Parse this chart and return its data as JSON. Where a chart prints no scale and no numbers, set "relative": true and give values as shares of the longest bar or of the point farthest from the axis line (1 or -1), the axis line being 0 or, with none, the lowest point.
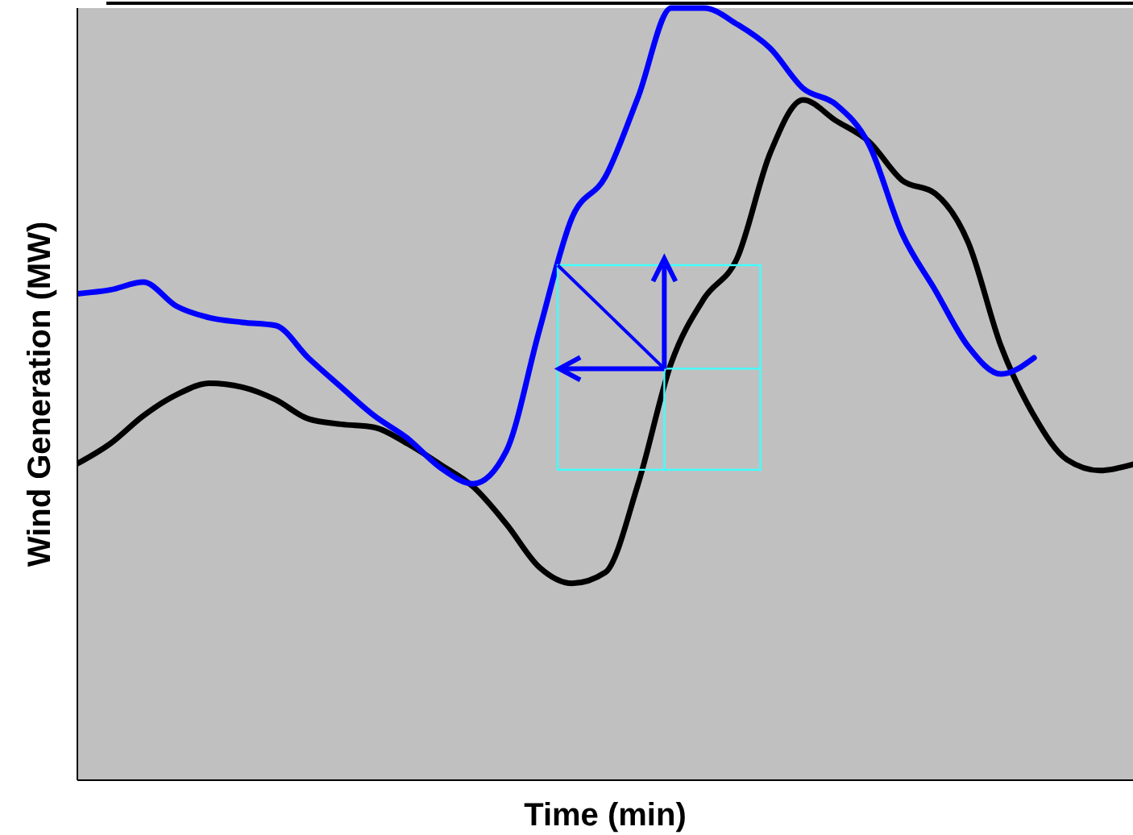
{
  "chart_data": {
    "type": "line",
    "relative": true,
    "xlabel": "Time (min)",
    "ylabel": "Wind Generation (MW)",
    "categories": [
      null,
      null,
      null,
      null,
      null,
      null,
      null,
      null,
      null,
      null,
      null,
      null,
      null,
      null,
      null,
      null,
      null,
      null,
      null,
      null,
      null,
      null,
      null,
      null,
      null,
      null,
      null,
      null,
      null,
      null,
      null,
      null,
      null
    ],
    "series": [
      {
        "color": "#000000",
        "values": [
          0.41,
          0.436,
          0.472,
          0.499,
          0.514,
          0.509,
          0.493,
          0.468,
          0.461,
          0.457,
          0.436,
          0.409,
          0.38,
          0.332,
          0.276,
          0.255,
          0.269,
          0.384,
          0.54,
          0.624,
          0.676,
          0.812,
          0.881,
          0.854,
          0.827,
          0.777,
          0.76,
          0.697,
          0.562,
          0.472,
          0.415,
          0.401,
          0.409
        ]
      },
      {
        "color": "#0000ff",
        "values": [
          0.63,
          0.635,
          0.645,
          0.614,
          0.599,
          0.593,
          0.589,
          0.547,
          0.509,
          0.472,
          0.443,
          0.405,
          0.384,
          0.426,
          0.582,
          0.729,
          0.781,
          0.885,
          1.0,
          1.0,
          0.979,
          0.948,
          0.896,
          0.875,
          0.823,
          0.708,
          0.635,
          0.562,
          0.526,
          0.547,
          null,
          null,
          null
        ]
      }
    ]
  }
}
